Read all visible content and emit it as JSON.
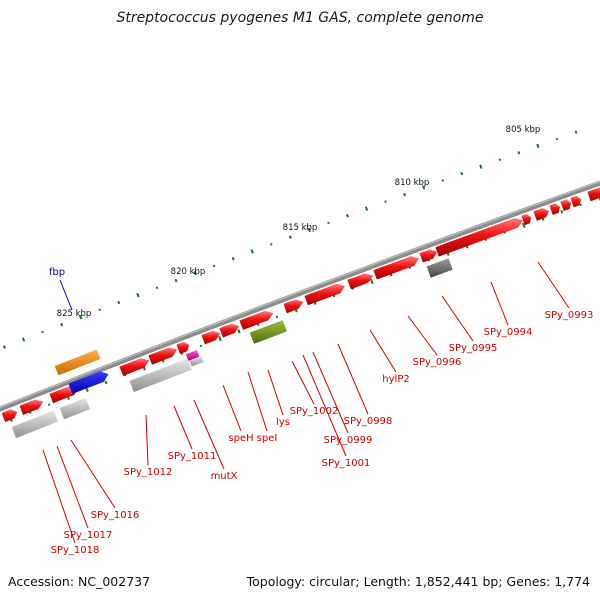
{
  "title": "Streptococcus pyogenes M1 GAS, complete genome",
  "footer": {
    "accession": "Accession: NC_002737",
    "summary": "Topology: circular; Length: 1,852,441 bp; Genes: 1,774"
  },
  "ticks": [
    {
      "label": "805 kbp"
    },
    {
      "label": "810 kbp"
    },
    {
      "label": "815 kbp"
    },
    {
      "label": "820 kbp"
    },
    {
      "label": "825 kbp"
    }
  ],
  "gene_labels": [
    {
      "text": "SPy_0993",
      "color": "#cc0000"
    },
    {
      "text": "SPy_0994",
      "color": "#cc0000"
    },
    {
      "text": "SPy_0995",
      "color": "#cc0000"
    },
    {
      "text": "SPy_0996",
      "color": "#cc0000"
    },
    {
      "text": "hylP2",
      "color": "#cc0000"
    },
    {
      "text": "SPy_0998",
      "color": "#cc0000"
    },
    {
      "text": "SPy_0999",
      "color": "#cc0000"
    },
    {
      "text": "SPy_1001",
      "color": "#cc0000"
    },
    {
      "text": "SPy_1002",
      "color": "#cc0000"
    },
    {
      "text": "lys",
      "color": "#cc0000"
    },
    {
      "text": "speI",
      "color": "#cc0000"
    },
    {
      "text": "speH",
      "color": "#cc0000"
    },
    {
      "text": "mutX",
      "color": "#cc0000"
    },
    {
      "text": "SPy_1011",
      "color": "#cc0000"
    },
    {
      "text": "SPy_1012",
      "color": "#cc0000"
    },
    {
      "text": "SPy_1016",
      "color": "#cc0000"
    },
    {
      "text": "SPy_1017",
      "color": "#cc0000"
    },
    {
      "text": "SPy_1018",
      "color": "#cc0000"
    },
    {
      "text": "fbp",
      "color": "#0000cc"
    }
  ],
  "colors": {
    "backbone": "#8c8c8c",
    "red_gene": "#ee1111",
    "grey_gene": "#bdbdbd",
    "dark_gene": "#6a6a6a",
    "olive_gene": "#6f8f1f",
    "magenta_gene": "#dd1199",
    "orange_gene": "#f08a10",
    "blue_gene": "#0000ee",
    "gc_tick": "#1a7a1a"
  }
}
